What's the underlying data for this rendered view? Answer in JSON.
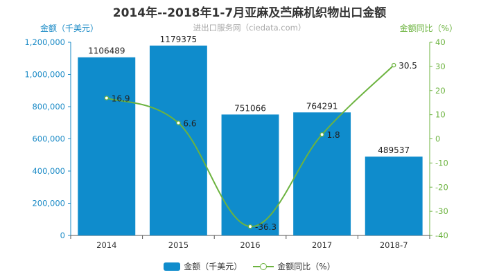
{
  "title": "2014年--2018年1-7月亚麻及苎麻机织物出口金额",
  "watermark": "进出口服务网（ciedata.com）",
  "colors": {
    "bar": "#0f8ccc",
    "line": "#6cb33f",
    "left_axis": "#1a8ac6",
    "right_axis": "#6cb33f"
  },
  "chart_data": {
    "type": "bar",
    "categories": [
      "2014",
      "2015",
      "2016",
      "2017",
      "2018-7"
    ],
    "series": [
      {
        "name": "金额（千美元）",
        "type": "bar",
        "axis": "left",
        "values": [
          1106489,
          1179375,
          751066,
          764291,
          489537
        ],
        "labels": [
          "1106489",
          "1179375",
          "751066",
          "764291",
          "489537"
        ]
      },
      {
        "name": "金额同比（%）",
        "type": "line",
        "axis": "right",
        "values": [
          16.9,
          6.6,
          -36.3,
          1.8,
          30.5
        ],
        "labels": [
          "16.9",
          "6.6",
          "-36.3",
          "1.8",
          "30.5"
        ]
      }
    ],
    "ylabel_left": "金额（千美元）",
    "ylabel_right": "金额同比（%）",
    "ylim_left": [
      0,
      1200000
    ],
    "ylim_right": [
      -40,
      40
    ],
    "yticks_left": [
      "0",
      "200,000",
      "400,000",
      "600,000",
      "800,000",
      "1,000,000",
      "1,200,000"
    ],
    "yticks_right": [
      "-40",
      "-30",
      "-20",
      "-10",
      "0",
      "10",
      "20",
      "30",
      "40"
    ],
    "grid": false,
    "legend_position": "bottom"
  }
}
